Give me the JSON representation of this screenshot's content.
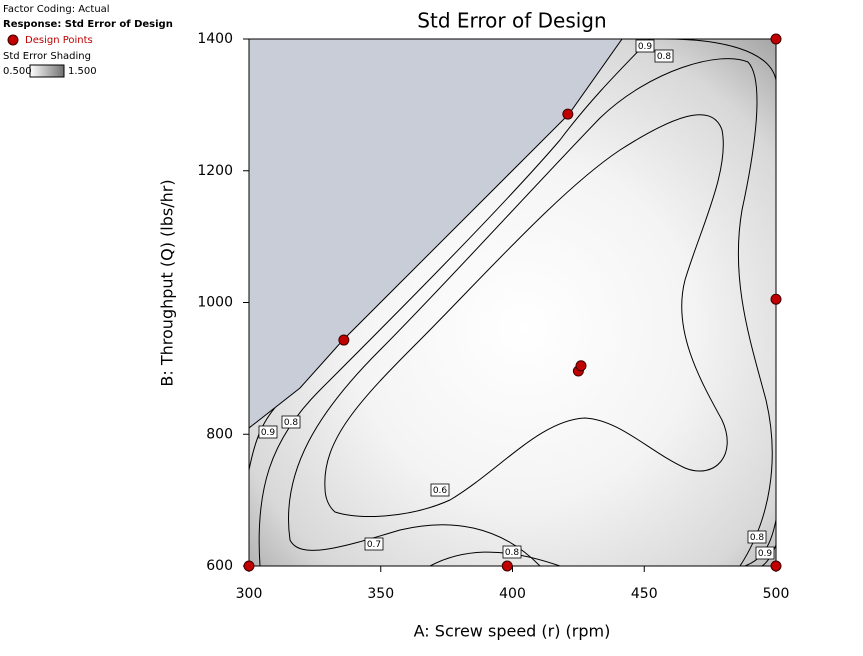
{
  "chart_data": {
    "type": "contour",
    "title": "Std Error of Design",
    "factor_coding": "Factor Coding: Actual",
    "response": "Response: Std Error of Design",
    "shading_title": "Std Error Shading",
    "shading_range": [
      {
        "value": 0.5,
        "label": "0.500"
      },
      {
        "value": 1.5,
        "label": "1.500"
      }
    ],
    "x_label": "A: Screw speed (r) (rpm)",
    "y_label": "B: Throughput (Q) (lbs/hr)",
    "xlim": [
      300,
      500
    ],
    "ylim": [
      600,
      1400
    ],
    "xticks": [
      300,
      350,
      400,
      450,
      500
    ],
    "yticks": [
      600,
      800,
      1000,
      1200,
      1400
    ],
    "contour_levels": [
      0.6,
      0.7,
      0.8,
      0.9
    ],
    "series": [
      {
        "name": "Design Points",
        "color": "#c00000",
        "x": [
          300,
          398,
          500,
          500,
          500,
          421,
          336,
          425,
          426
        ],
        "values": [
          600,
          600,
          600,
          1005,
          1400,
          1286,
          943,
          896,
          904
        ]
      }
    ]
  }
}
